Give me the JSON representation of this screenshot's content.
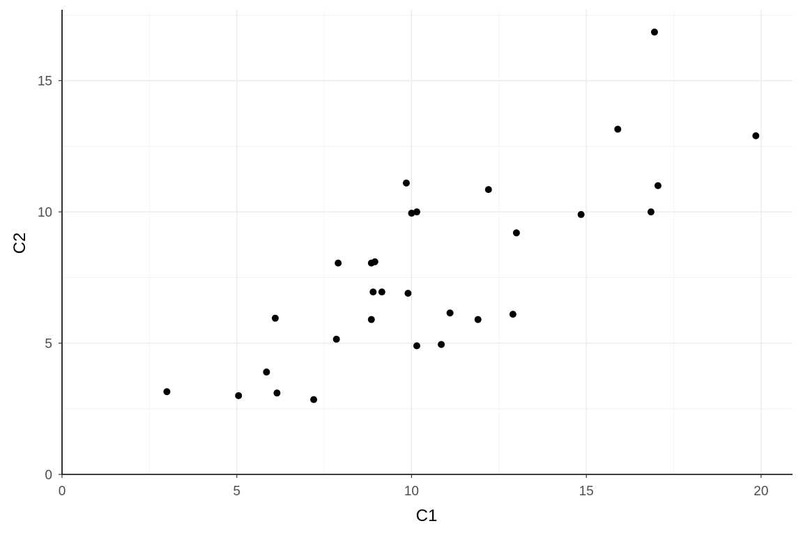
{
  "chart_data": {
    "type": "scatter",
    "title": "",
    "xlabel": "C1",
    "ylabel": "C2",
    "xlim": [
      0,
      20.9
    ],
    "ylim": [
      0,
      17.7
    ],
    "x_ticks": [
      0,
      5,
      10,
      15,
      20
    ],
    "y_ticks": [
      0,
      5,
      10,
      15
    ],
    "x_tick_labels": [
      "0",
      "5",
      "10",
      "15",
      "20"
    ],
    "y_tick_labels": [
      "0",
      "5",
      "10",
      "15"
    ],
    "x_minor_ticks": [
      2.5,
      7.5,
      12.5,
      17.5
    ],
    "y_minor_ticks": [
      2.5,
      7.5,
      12.5,
      17.5
    ],
    "grid": true,
    "legend": "none",
    "point_color": "#000000",
    "points": [
      {
        "x": 3.0,
        "y": 3.15
      },
      {
        "x": 5.05,
        "y": 3.0
      },
      {
        "x": 5.85,
        "y": 3.9
      },
      {
        "x": 6.1,
        "y": 5.95
      },
      {
        "x": 6.15,
        "y": 3.1
      },
      {
        "x": 7.2,
        "y": 2.85
      },
      {
        "x": 7.85,
        "y": 5.15
      },
      {
        "x": 7.9,
        "y": 8.05
      },
      {
        "x": 8.85,
        "y": 5.9
      },
      {
        "x": 8.85,
        "y": 8.05
      },
      {
        "x": 8.9,
        "y": 6.95
      },
      {
        "x": 8.95,
        "y": 8.1
      },
      {
        "x": 9.15,
        "y": 6.95
      },
      {
        "x": 9.85,
        "y": 11.1
      },
      {
        "x": 9.9,
        "y": 6.9
      },
      {
        "x": 10.0,
        "y": 9.95
      },
      {
        "x": 10.15,
        "y": 10.0
      },
      {
        "x": 10.15,
        "y": 4.9
      },
      {
        "x": 10.85,
        "y": 4.95
      },
      {
        "x": 11.1,
        "y": 6.15
      },
      {
        "x": 11.9,
        "y": 5.9
      },
      {
        "x": 12.2,
        "y": 10.85
      },
      {
        "x": 12.9,
        "y": 6.1
      },
      {
        "x": 13.0,
        "y": 9.2
      },
      {
        "x": 14.85,
        "y": 9.9
      },
      {
        "x": 15.9,
        "y": 13.15
      },
      {
        "x": 16.85,
        "y": 10.0
      },
      {
        "x": 16.95,
        "y": 16.85
      },
      {
        "x": 17.05,
        "y": 11.0
      },
      {
        "x": 19.85,
        "y": 12.9
      }
    ]
  }
}
